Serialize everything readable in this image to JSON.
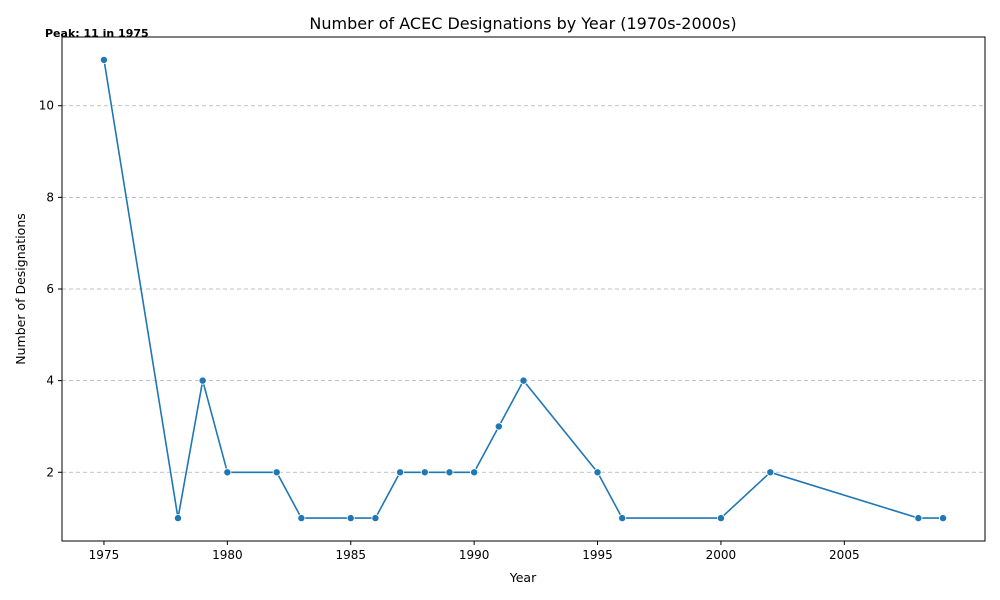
{
  "chart_data": {
    "type": "line",
    "title": "Number of ACEC Designations by Year (1970s-2000s)",
    "xlabel": "Year",
    "ylabel": "Number of Designations",
    "x": [
      1975,
      1978,
      1979,
      1980,
      1982,
      1983,
      1985,
      1986,
      1987,
      1988,
      1989,
      1990,
      1991,
      1992,
      1995,
      1996,
      2000,
      2002,
      2008,
      2009
    ],
    "series": [
      {
        "values": [
          11,
          1,
          4,
          2,
          2,
          1,
          1,
          1,
          2,
          2,
          2,
          2,
          3,
          4,
          2,
          1,
          1,
          2,
          1,
          1
        ],
        "color": "#1f77b4",
        "marker": "circle"
      }
    ],
    "xlim": [
      1973.3,
      2010.7
    ],
    "ylim": [
      0.5,
      11.5
    ],
    "xticks": [
      1975,
      1980,
      1985,
      1990,
      1995,
      2000,
      2005
    ],
    "yticks": [
      2,
      4,
      6,
      8,
      10
    ],
    "grid": "y-dashed",
    "annotation": {
      "text": "Peak: 11 in 1975",
      "x": 1975,
      "y": 11
    }
  }
}
